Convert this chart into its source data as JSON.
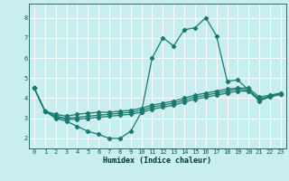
{
  "xlabel": "Humidex (Indice chaleur)",
  "xlim": [
    -0.5,
    23.5
  ],
  "ylim": [
    1.5,
    8.7
  ],
  "yticks": [
    2,
    3,
    4,
    5,
    6,
    7,
    8
  ],
  "xticks": [
    0,
    1,
    2,
    3,
    4,
    5,
    6,
    7,
    8,
    9,
    10,
    11,
    12,
    13,
    14,
    15,
    16,
    17,
    18,
    19,
    20,
    21,
    22,
    23
  ],
  "background_color": "#c8eef0",
  "grid_color": "#ffffff",
  "line_color": "#1a7a6e",
  "lines": [
    {
      "x": [
        0,
        1,
        2,
        3,
        4,
        5,
        6,
        7,
        8,
        9,
        10,
        11,
        12,
        13,
        14,
        15,
        16,
        17,
        18,
        19,
        20,
        21,
        22,
        23
      ],
      "y": [
        4.5,
        3.35,
        3.0,
        2.85,
        2.6,
        2.35,
        2.2,
        2.0,
        2.0,
        2.35,
        3.3,
        6.0,
        7.0,
        6.6,
        7.4,
        7.5,
        8.0,
        7.1,
        4.85,
        4.9,
        4.4,
        3.85,
        4.1,
        4.2
      ]
    },
    {
      "x": [
        0,
        1,
        2,
        3,
        4,
        5,
        6,
        7,
        8,
        9,
        10,
        11,
        12,
        13,
        14,
        15,
        16,
        17,
        18,
        19,
        20,
        21,
        22,
        23
      ],
      "y": [
        4.5,
        3.35,
        3.2,
        3.1,
        3.2,
        3.25,
        3.3,
        3.3,
        3.35,
        3.4,
        3.5,
        3.65,
        3.75,
        3.85,
        4.0,
        4.15,
        4.25,
        4.35,
        4.45,
        4.5,
        4.5,
        4.05,
        4.15,
        4.25
      ]
    },
    {
      "x": [
        0,
        1,
        2,
        3,
        4,
        5,
        6,
        7,
        8,
        9,
        10,
        11,
        12,
        13,
        14,
        15,
        16,
        17,
        18,
        19,
        20,
        21,
        22,
        23
      ],
      "y": [
        4.5,
        3.35,
        3.05,
        2.95,
        2.95,
        3.0,
        3.05,
        3.1,
        3.15,
        3.2,
        3.3,
        3.45,
        3.55,
        3.65,
        3.8,
        3.95,
        4.05,
        4.15,
        4.25,
        4.35,
        4.35,
        3.9,
        4.05,
        4.2
      ]
    },
    {
      "x": [
        0,
        1,
        2,
        3,
        4,
        5,
        6,
        7,
        8,
        9,
        10,
        11,
        12,
        13,
        14,
        15,
        16,
        17,
        18,
        19,
        20,
        21,
        22,
        23
      ],
      "y": [
        4.5,
        3.35,
        3.1,
        3.0,
        3.05,
        3.1,
        3.15,
        3.2,
        3.25,
        3.3,
        3.4,
        3.55,
        3.65,
        3.75,
        3.9,
        4.05,
        4.15,
        4.25,
        4.35,
        4.45,
        4.4,
        3.95,
        4.1,
        4.2
      ]
    }
  ]
}
